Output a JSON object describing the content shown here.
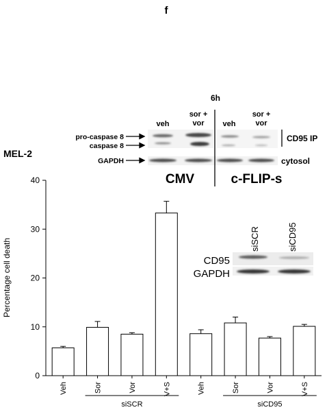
{
  "panel_letter": "f",
  "chart_data": {
    "type": "bar",
    "ylabel": "Percentage cell death",
    "ylim": [
      0,
      40
    ],
    "yticks": [
      0,
      10,
      20,
      30,
      40
    ],
    "categories": [
      "Veh",
      "Sor",
      "Vor",
      "V+S",
      "Veh",
      "Sor",
      "Vor",
      "V+S"
    ],
    "values": [
      5.7,
      9.9,
      8.5,
      33.3,
      8.6,
      10.8,
      7.7,
      10.1
    ],
    "errors": [
      0.3,
      1.2,
      0.3,
      2.4,
      0.8,
      1.2,
      0.3,
      0.4
    ],
    "bar_fill": "#ffffff",
    "bar_stroke": "#000000",
    "groups": [
      {
        "label": "siSCR",
        "from": 1,
        "to": 3
      },
      {
        "label": "siCD95",
        "from": 5,
        "to": 7
      }
    ]
  },
  "top_blot": {
    "cell_line": "MEL-2",
    "time": "6h",
    "columns": [
      "veh",
      "sor +\nvor",
      "veh",
      "sor +\nvor"
    ],
    "rows": [
      "pro-caspase 8",
      "caspase 8",
      "GAPDH"
    ],
    "right_labels": [
      "CD95 IP",
      "cytosol"
    ],
    "groups": [
      "CMV",
      "c-FLIP-s"
    ]
  },
  "inset_blot": {
    "lanes": [
      "siSCR",
      "siCD95"
    ],
    "rows": [
      "CD95",
      "GAPDH"
    ]
  }
}
